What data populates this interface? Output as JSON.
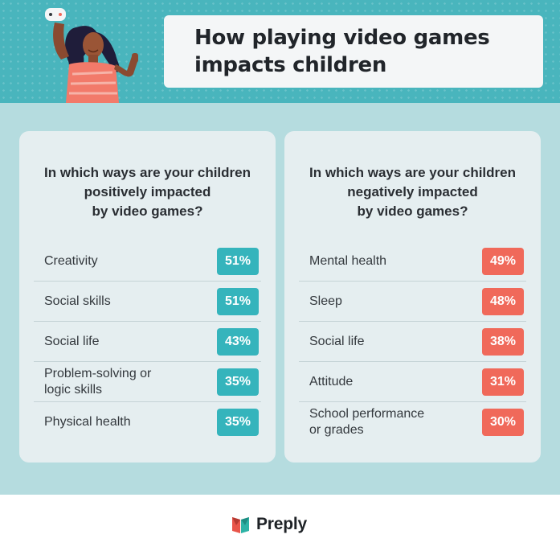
{
  "title": {
    "line1": "How playing video games",
    "line2": "impacts children"
  },
  "colors": {
    "header": "#49b5bd",
    "positive": "#35b4bc",
    "negative": "#f0695a",
    "panel": "#e5eef0",
    "background": "#b5dcdf"
  },
  "chart_data": [
    {
      "type": "table",
      "title_lines": [
        "In which ways are your children",
        "positively impacted",
        "by video games?"
      ],
      "rows": [
        {
          "label_lines": [
            "Creativity"
          ],
          "value": 51,
          "display": "51%"
        },
        {
          "label_lines": [
            "Social skills"
          ],
          "value": 51,
          "display": "51%"
        },
        {
          "label_lines": [
            "Social life"
          ],
          "value": 43,
          "display": "43%"
        },
        {
          "label_lines": [
            "Problem-solving or",
            "logic skills"
          ],
          "value": 35,
          "display": "35%"
        },
        {
          "label_lines": [
            "Physical health"
          ],
          "value": 35,
          "display": "35%"
        }
      ]
    },
    {
      "type": "table",
      "title_lines": [
        "In which ways are your children",
        "negatively impacted",
        "by video games?"
      ],
      "rows": [
        {
          "label_lines": [
            "Mental health"
          ],
          "value": 49,
          "display": "49%"
        },
        {
          "label_lines": [
            "Sleep"
          ],
          "value": 48,
          "display": "48%"
        },
        {
          "label_lines": [
            "Social life"
          ],
          "value": 38,
          "display": "38%"
        },
        {
          "label_lines": [
            "Attitude"
          ],
          "value": 31,
          "display": "31%"
        },
        {
          "label_lines": [
            "School performance",
            "or grades"
          ],
          "value": 30,
          "display": "30%"
        }
      ]
    }
  ],
  "footer": {
    "brand": "Preply",
    "logo_icon": "preply-logo-icon"
  }
}
